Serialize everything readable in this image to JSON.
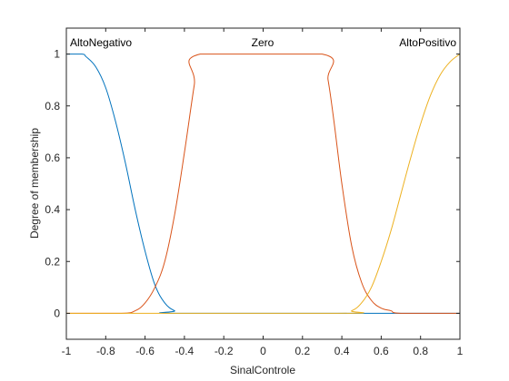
{
  "chart_data": {
    "type": "line",
    "xlabel": "SinalControle",
    "ylabel": "Degree of membership",
    "xlim": [
      -1,
      1
    ],
    "ylim": [
      -0.1,
      1.1
    ],
    "x_ticks": [
      "-1",
      "-0.8",
      "-0.6",
      "-0.4",
      "-0.2",
      "0",
      "0.2",
      "0.4",
      "0.6",
      "0.8",
      "1"
    ],
    "y_ticks": [
      "0",
      "0.2",
      "0.4",
      "0.6",
      "0.8",
      "1"
    ],
    "grid": false,
    "series": [
      {
        "name": "AltoNegativo",
        "color": "#0072bd",
        "x": [
          -1,
          -0.92,
          -0.9,
          -0.85,
          -0.8,
          -0.75,
          -0.7,
          -0.65,
          -0.6,
          -0.55,
          -0.5,
          -0.45,
          -0.4,
          1
        ],
        "y": [
          1,
          1,
          0.99,
          0.95,
          0.87,
          0.74,
          0.58,
          0.4,
          0.24,
          0.11,
          0.04,
          0.01,
          0,
          0
        ]
      },
      {
        "name": "Zero",
        "color": "#d95319",
        "x": [
          -1,
          -0.72,
          -0.65,
          -0.6,
          -0.55,
          -0.5,
          -0.45,
          -0.4,
          -0.35,
          -0.32,
          0.3,
          0.33,
          0.36,
          0.4,
          0.45,
          0.5,
          0.55,
          0.6,
          0.65,
          0.7,
          1
        ],
        "y": [
          0,
          0,
          0.01,
          0.04,
          0.1,
          0.2,
          0.38,
          0.62,
          0.88,
          1,
          1,
          0.9,
          0.74,
          0.5,
          0.26,
          0.12,
          0.05,
          0.02,
          0.01,
          0,
          0
        ]
      },
      {
        "name": "AltoPositivo",
        "color": "#edb120",
        "x": [
          -1,
          0.38,
          0.45,
          0.5,
          0.55,
          0.6,
          0.65,
          0.7,
          0.75,
          0.8,
          0.85,
          0.9,
          0.95,
          1
        ],
        "y": [
          0,
          0,
          0.01,
          0.04,
          0.1,
          0.2,
          0.32,
          0.46,
          0.6,
          0.73,
          0.84,
          0.92,
          0.97,
          1
        ]
      }
    ]
  }
}
